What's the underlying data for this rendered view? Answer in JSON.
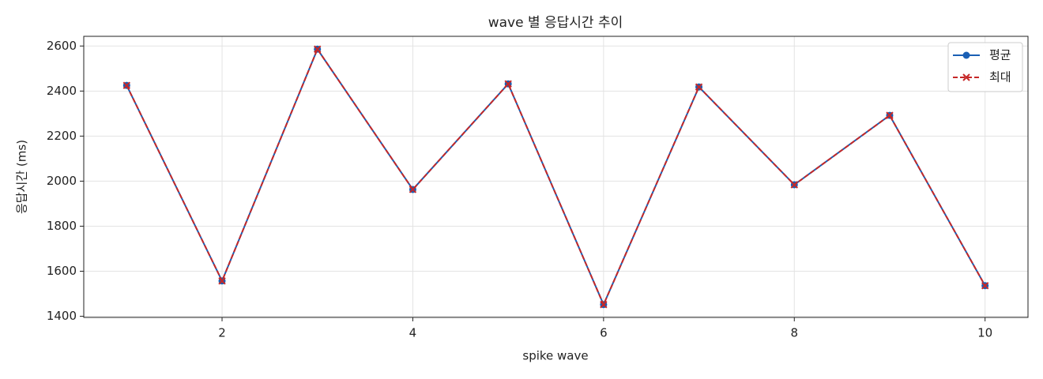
{
  "chart_data": {
    "type": "line",
    "title": "wave 별 응답시간 추이",
    "xlabel": "spike wave",
    "ylabel": "응답시간 (ms)",
    "x": [
      1,
      2,
      3,
      4,
      5,
      6,
      7,
      8,
      9,
      10
    ],
    "series": [
      {
        "name": "평균",
        "color": "#1a5fb4",
        "linestyle": "solid",
        "marker": "o",
        "values": [
          2425,
          1557,
          2586,
          1963,
          2432,
          1452,
          2418,
          1984,
          2292,
          1536
        ]
      },
      {
        "name": "최대",
        "color": "#c62828",
        "linestyle": "dashed",
        "marker": "x",
        "values": [
          2425,
          1557,
          2586,
          1963,
          2432,
          1452,
          2418,
          1984,
          2292,
          1536
        ]
      }
    ],
    "xlim": [
      0.55,
      10.45
    ],
    "xticks": [
      2,
      4,
      6,
      8,
      10
    ],
    "ylim": [
      1395,
      2643
    ],
    "yticks": [
      1400,
      1600,
      1800,
      2000,
      2200,
      2400,
      2600
    ],
    "grid": true,
    "legend": "upper right"
  }
}
